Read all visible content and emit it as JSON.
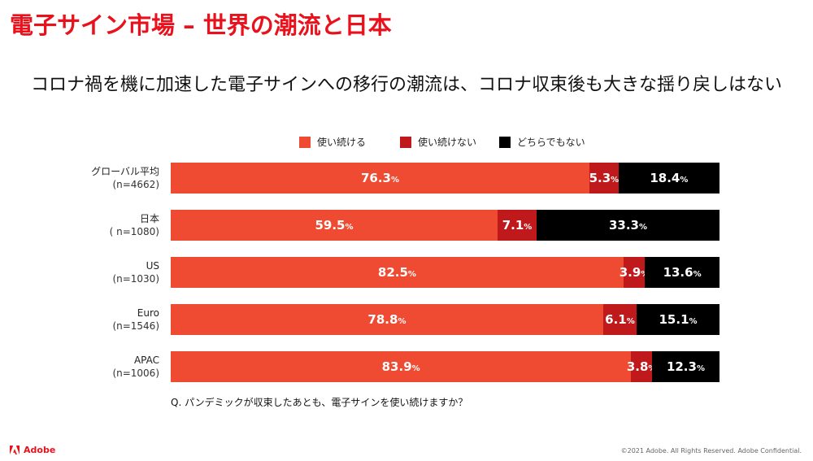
{
  "title": "電子サイン市場 – 世界の潮流と日本",
  "subtitle": "コロナ禍を機に加速した電子サインへの移行の潮流は、コロナ収束後も大きな揺り戻しはない",
  "question": "Q. パンデミックが収束したあとも、電子サインを使い続けますか？",
  "footer": {
    "brand": "Adobe",
    "copyright": "©2021 Adobe. All Rights Reserved. Adobe Confidential."
  },
  "colors": {
    "title": "#e8111c",
    "continue": "#ee4b32",
    "discontinue": "#c0191c",
    "neither": "#000000"
  },
  "chart_data": {
    "type": "bar",
    "orientation": "horizontal",
    "stacked": true,
    "unit": "%",
    "legend_position": "top",
    "series": [
      {
        "name": "使い続ける",
        "color": "#ee4b32",
        "values": [
          76.3,
          59.5,
          82.5,
          78.8,
          83.9
        ]
      },
      {
        "name": "使い続けない",
        "color": "#c0191c",
        "values": [
          5.3,
          7.1,
          3.9,
          6.1,
          3.8
        ]
      },
      {
        "name": "どちらでもない",
        "color": "#000000",
        "values": [
          18.4,
          33.3,
          13.6,
          15.1,
          12.3
        ]
      }
    ],
    "categories": [
      {
        "name": "グローバル平均",
        "n": "(n=4662)"
      },
      {
        "name": "日本",
        "n": "( n=1080)"
      },
      {
        "name": "US",
        "n": "(n=1030)"
      },
      {
        "name": "Euro",
        "n": "(n=1546)"
      },
      {
        "name": "APAC",
        "n": "(n=1006)"
      }
    ]
  }
}
